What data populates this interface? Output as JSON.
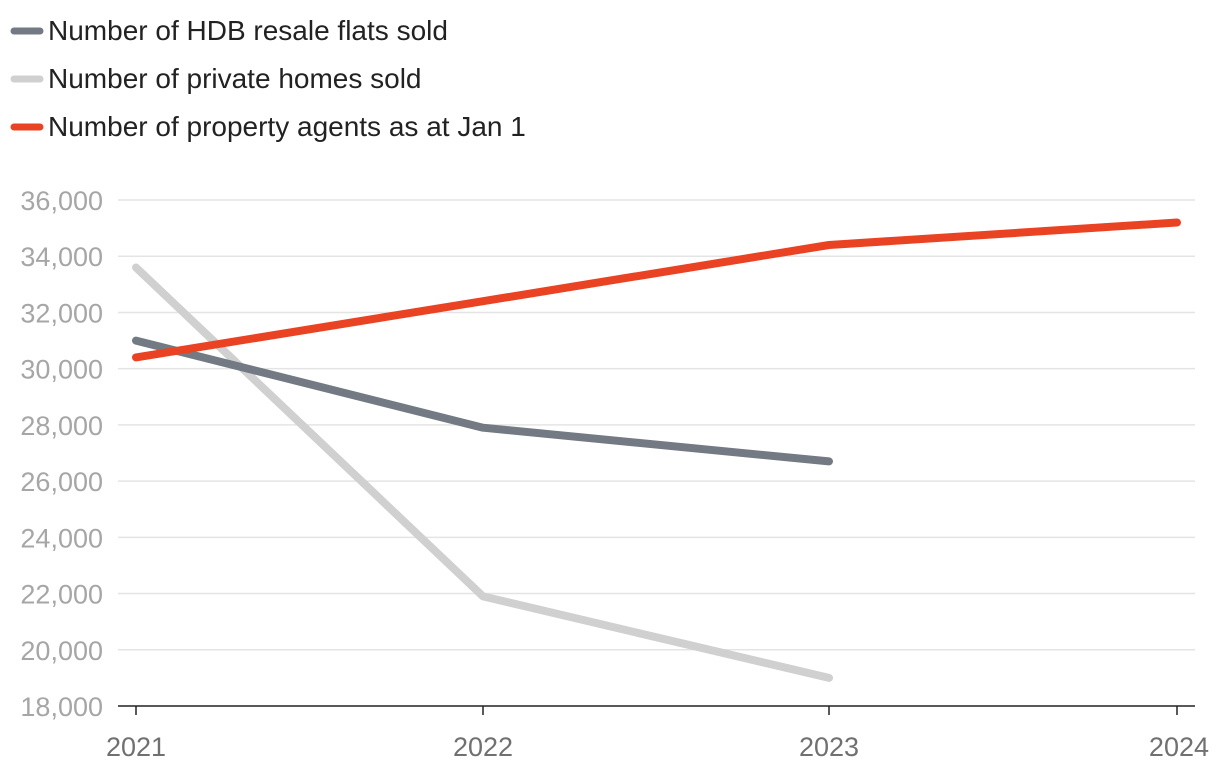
{
  "chart_data": {
    "type": "line",
    "title": "",
    "xlabel": "",
    "ylabel": "",
    "x": [
      "2021",
      "2022",
      "2023",
      "2024"
    ],
    "ylim": [
      18000,
      36000
    ],
    "yticks": [
      18000,
      20000,
      22000,
      24000,
      26000,
      28000,
      30000,
      32000,
      34000,
      36000
    ],
    "ytick_labels": [
      "18,000",
      "20,000",
      "22,000",
      "24,000",
      "26,000",
      "28,000",
      "30,000",
      "32,000",
      "34,000",
      "36,000"
    ],
    "grid": true,
    "legend_position": "top-left",
    "series": [
      {
        "name": "Number of HDB resale flats sold",
        "color": "#737a84",
        "values": [
          31000,
          27900,
          26700,
          null
        ]
      },
      {
        "name": "Number of private homes sold",
        "color": "#d0d0d0",
        "values": [
          33600,
          21900,
          19000,
          null
        ]
      },
      {
        "name": "Number of property agents as at Jan 1",
        "color": "#ea4323",
        "values": [
          30400,
          32400,
          34400,
          35200
        ]
      }
    ]
  },
  "colors": {
    "grid": "#e4e4e4",
    "axis": "#222222",
    "tick_label": "#a6a6a6",
    "x_tick_label": "#707070"
  }
}
